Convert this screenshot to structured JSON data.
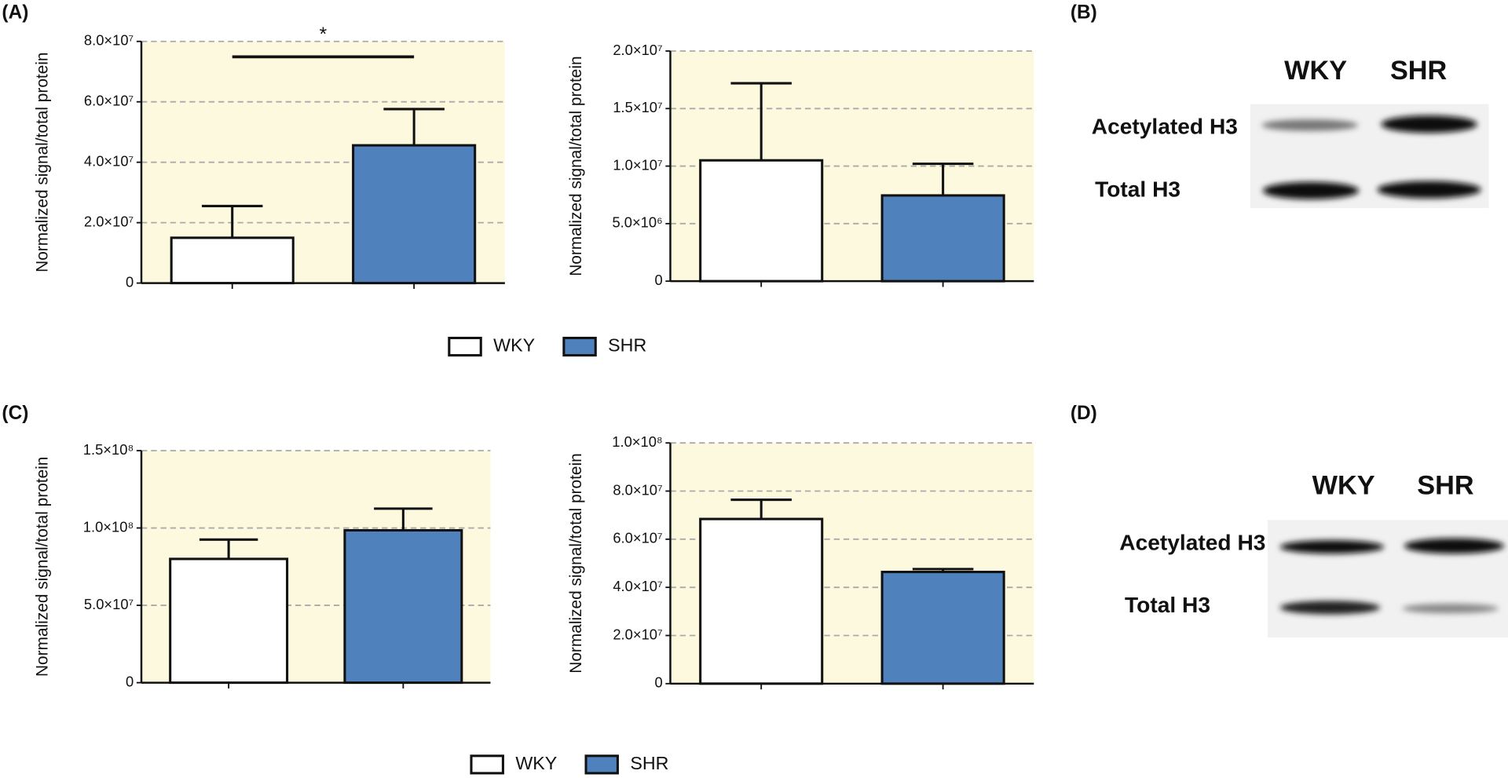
{
  "panels": [
    "(A)",
    "(B)",
    "(C)",
    "(D)"
  ],
  "chart_data": [
    {
      "type": "bar",
      "y_label": "Normalized signal/total protein",
      "categories": [
        null
      ],
      "background": "#fcf9de",
      "grid": true,
      "annotation": "*",
      "series": [
        {
          "name": "WKY",
          "color": "#ffffff",
          "values": [
            15000000
          ],
          "errors": [
            10500000
          ]
        },
        {
          "name": "SHR",
          "color": "#4f81bd",
          "values": [
            45600000
          ],
          "errors": [
            12000000
          ]
        }
      ],
      "ylim": [
        0,
        80000000
      ],
      "yticks": [
        0,
        {
          "value": 20000000,
          "label": "2.0×10⁷"
        },
        {
          "value": 40000000,
          "label": "4.0×10⁷"
        },
        {
          "value": 60000000,
          "label": "6.0×10⁷"
        },
        {
          "value": 80000000,
          "label": "8.0×10⁷"
        }
      ]
    },
    {
      "type": "bar",
      "y_label": "Normalized signal/total protein",
      "categories": [
        null
      ],
      "background": "#fcf9de",
      "grid": true,
      "series": [
        {
          "color": "#ffffff",
          "values": [
            10500000
          ],
          "errors": [
            6700000
          ]
        },
        {
          "color": "#4f81bd",
          "values": [
            7450000
          ],
          "errors": [
            2750000
          ]
        }
      ],
      "ylim": [
        0,
        20000000
      ],
      "yticks": [
        0,
        {
          "value": 5000000,
          "label": "5.0×10⁶"
        },
        {
          "value": 10000000,
          "label": "1.0×10⁷"
        },
        {
          "value": 15000000,
          "label": "1.5×10⁷"
        },
        {
          "value": 20000000,
          "label": "2.0×10⁷"
        }
      ]
    },
    {
      "type": "bar",
      "y_label": "Normalized signal/total protein",
      "categories": [
        null
      ],
      "background": "#fcf9de",
      "grid": true,
      "series": [
        {
          "name": "WKY",
          "color": "#ffffff",
          "values": [
            80000000
          ],
          "errors": [
            12500000
          ]
        },
        {
          "name": "SHR",
          "color": "#4f81bd",
          "values": [
            98500000
          ],
          "errors": [
            14000000
          ]
        }
      ],
      "ylim": [
        0,
        150000000
      ],
      "yticks": [
        0,
        {
          "value": 50000000,
          "label": "5.0×10⁷"
        },
        {
          "value": 100000000,
          "label": "1.0×10⁸"
        },
        {
          "value": 150000000,
          "label": "1.5×10⁸"
        }
      ]
    },
    {
      "type": "bar",
      "y_label": "Normalized signal/total protein",
      "categories": [
        null
      ],
      "background": "#fcf9de",
      "grid": true,
      "series": [
        {
          "color": "#ffffff",
          "values": [
            68400000
          ],
          "errors": [
            8000000
          ]
        },
        {
          "color": "#4f81bd",
          "values": [
            46400000
          ],
          "errors": [
            1200000
          ]
        }
      ],
      "ylim": [
        0,
        100000000
      ],
      "yticks": [
        0,
        {
          "value": 20000000,
          "label": "2.0×10⁷"
        },
        {
          "value": 40000000,
          "label": "4.0×10⁷"
        },
        {
          "value": 60000000,
          "label": "6.0×10⁷"
        },
        {
          "value": 80000000,
          "label": "8.0×10⁷"
        },
        {
          "value": 100000000,
          "label": "1.0×10⁸"
        }
      ]
    }
  ],
  "blots": [
    {
      "lanes": [
        "WKY",
        "SHR"
      ],
      "rows": [
        "Acetylated H3",
        "Total H3"
      ]
    },
    {
      "lanes": [
        "WKY",
        "SHR"
      ],
      "rows": [
        "Acetylated H3",
        "Total H3"
      ]
    }
  ]
}
